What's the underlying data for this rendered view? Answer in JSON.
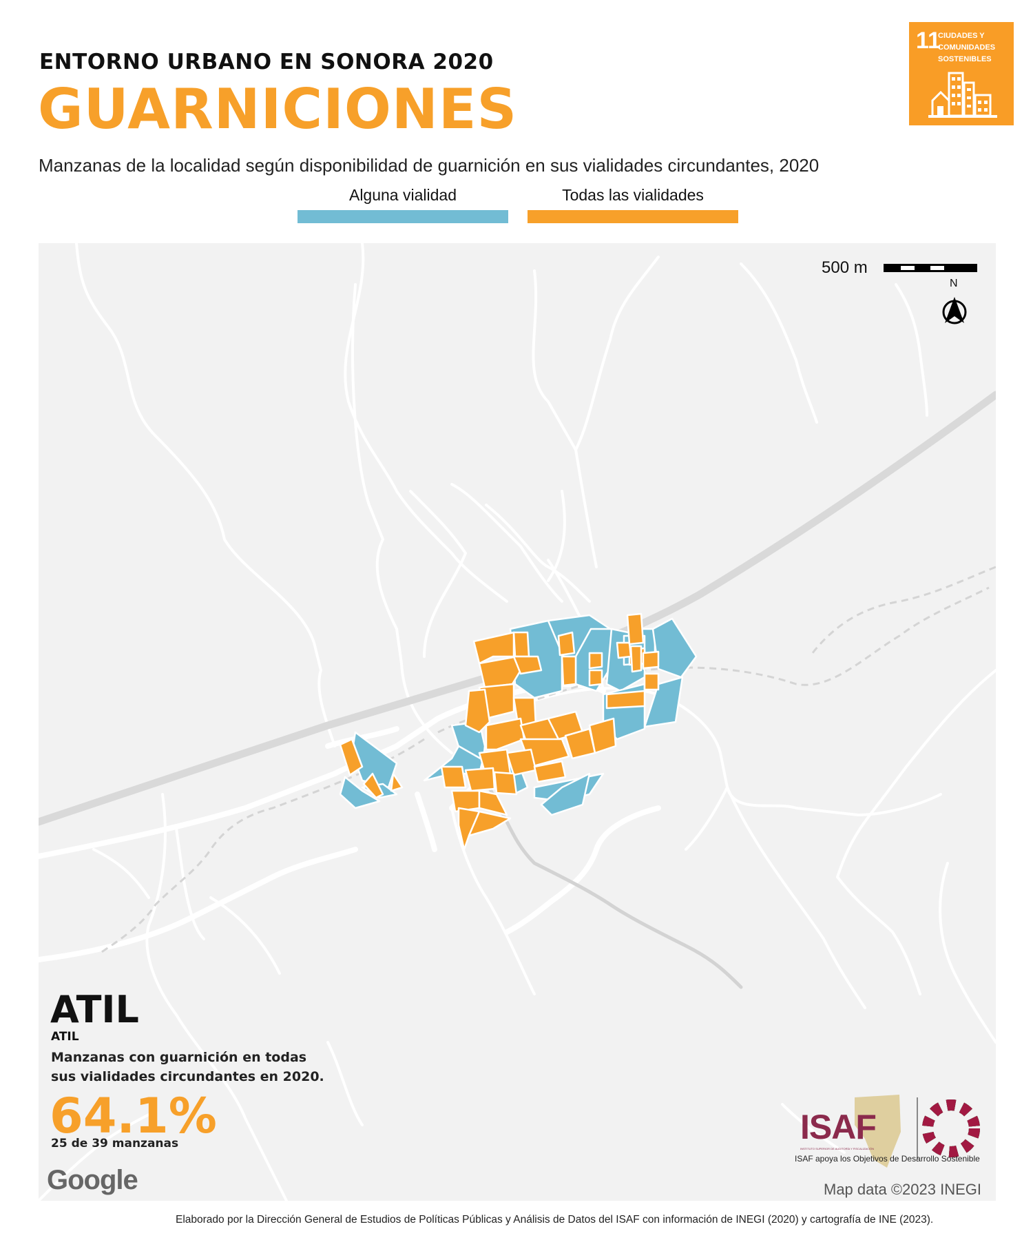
{
  "header": {
    "kicker": "ENTORNO URBANO EN SONORA 2020",
    "title": "GUARNICIONES",
    "subtitle": "Manzanas de la localidad según disponibilidad de guarnición en sus vialidades circundantes, 2020"
  },
  "legend": {
    "items": [
      {
        "label": "Alguna vialidad",
        "color": "#72bcd4"
      },
      {
        "label": "Todas las vialidades",
        "color": "#f7a02a"
      }
    ]
  },
  "sdg_badge": {
    "number": "11",
    "line1": "CIUDADES Y",
    "line2": "COMUNIDADES",
    "line3": "SOSTENIBLES",
    "color": "#f99d26",
    "icon": "city-buildings-icon"
  },
  "map": {
    "scale_label": "500 m",
    "north_label": "N",
    "locality_name": "ATIL",
    "municipality": "ATIL",
    "description": "Manzanas con guarnición en todas sus vialidades circundantes en 2020.",
    "percentage": "64.1%",
    "count_text": "25 de 39 manzanas",
    "basemap_logo": "Google",
    "attribution": "Map data ©2023 INEGI",
    "background_color": "#f2f2f2"
  },
  "branding": {
    "org": "ISAF",
    "org_tagline": "INSTITUTO SUPERIOR DE AUDITORÍA Y FISCALIZACIÓN",
    "caption": "ISAF apoya los Objetivos de Desarrollo Sostenible",
    "org_color": "#8b2a4c",
    "sdg_wheel_icon": "sdg-wheel-icon"
  },
  "footer": {
    "credits": "Elaborado por la Dirección General de Estudios de Políticas Públicas y Análisis de Datos del ISAF con información de INEGI (2020) y cartografía de INE (2023)."
  }
}
